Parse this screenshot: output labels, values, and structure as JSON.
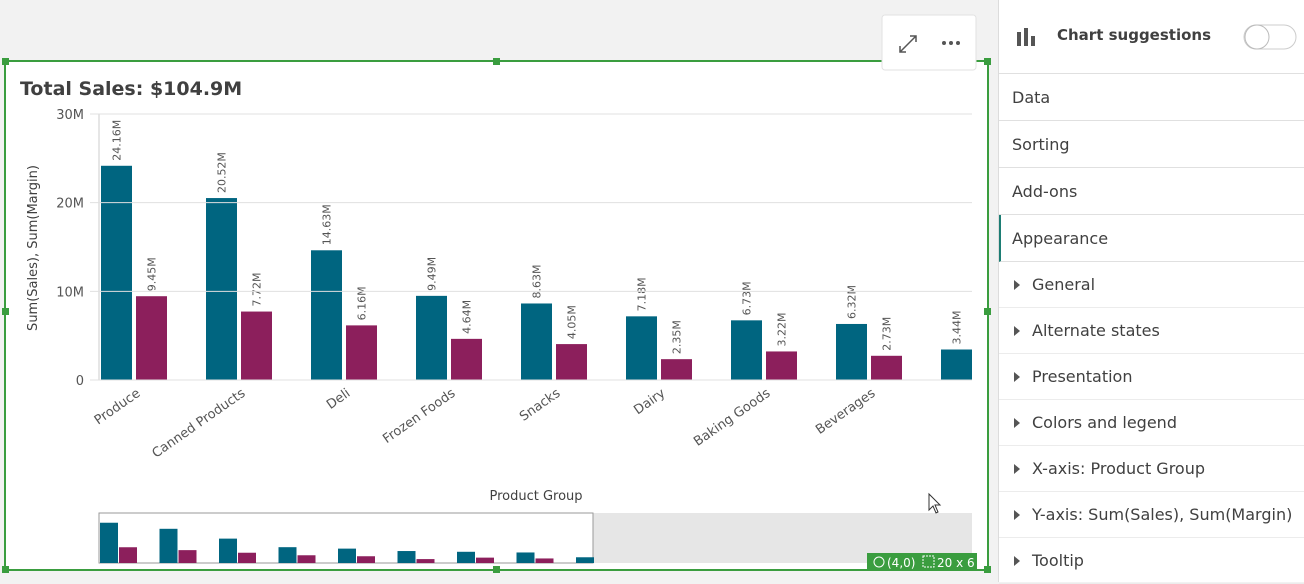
{
  "chart_data": {
    "type": "bar",
    "title": "Total Sales: $104.9M",
    "x_label": "Product Group",
    "y_label": "Sum(Sales), Sum(Margin)",
    "categories": [
      "Produce",
      "Canned Products",
      "Deli",
      "Frozen Foods",
      "Snacks",
      "Dairy",
      "Baking Goods",
      "Beverages",
      null
    ],
    "series": [
      {
        "color": "#006580",
        "values": [
          24160000,
          20520000,
          14630000,
          9490000,
          8630000,
          7180000,
          6730000,
          6320000,
          3440000
        ],
        "value_labels": [
          "24.16M",
          "20.52M",
          "14.63M",
          "9.49M",
          "8.63M",
          "7.18M",
          "6.73M",
          "6.32M",
          "3.44M"
        ]
      },
      {
        "color": "#8c1f5c",
        "values": [
          9450000,
          7720000,
          6160000,
          4640000,
          4050000,
          2350000,
          3220000,
          2730000,
          null
        ],
        "value_labels": [
          "9.45M",
          "7.72M",
          "6.16M",
          "4.64M",
          "4.05M",
          "2.35M",
          "3.22M",
          "2.73M",
          null
        ]
      }
    ],
    "ylim": [
      0,
      30000000
    ],
    "yticks": [
      0,
      {
        "value": 10000000,
        "label": "10M"
      },
      {
        "value": 20000000,
        "label": "20M"
      },
      {
        "value": 30000000,
        "label": "30M"
      }
    ],
    "grid": true
  },
  "panel": {
    "header": "Chart suggestions",
    "tabs": [
      "Data",
      "Sorting",
      "Add-ons",
      "Appearance"
    ],
    "sections": [
      "General",
      "Alternate states",
      "Presentation",
      "Colors and legend",
      "X-axis: Product Group",
      "Y-axis: Sum(Sales), Sum(Margin)",
      "Tooltip"
    ]
  },
  "status": {
    "position": "(4,0)",
    "size": "20 x 6"
  }
}
